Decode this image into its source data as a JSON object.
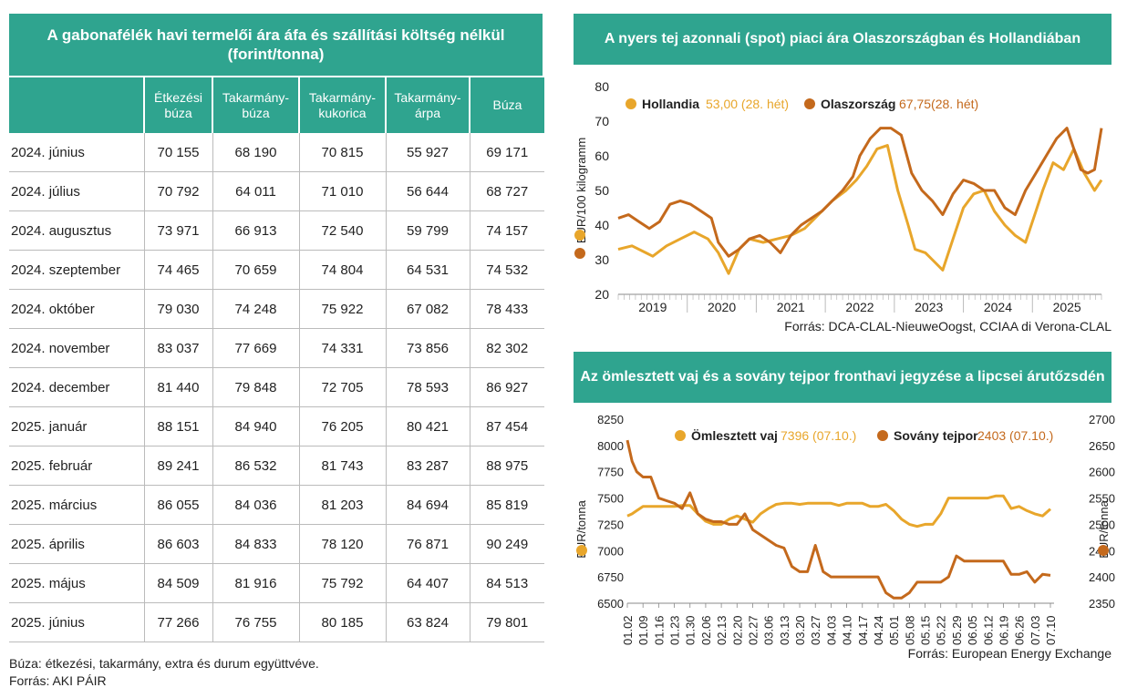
{
  "table": {
    "title": "A gabonafélék havi termelői ára áfa és szállítási költség nélkül (forint/tonna)",
    "headers": [
      "",
      "Étkezési búza",
      "Takarmány-búza",
      "Takarmány-kukorica",
      "Takarmány-árpa",
      "Búza"
    ],
    "rows": [
      [
        "2024. június",
        "70 155",
        "68 190",
        "70 815",
        "55 927",
        "69 171"
      ],
      [
        "2024. július",
        "70 792",
        "64 011",
        "71 010",
        "56 644",
        "68 727"
      ],
      [
        "2024. augusztus",
        "73 971",
        "66 913",
        "72 540",
        "59 799",
        "74 157"
      ],
      [
        "2024. szeptember",
        "74 465",
        "70 659",
        "74 804",
        "64 531",
        "74 532"
      ],
      [
        "2024. október",
        "79 030",
        "74 248",
        "75 922",
        "67 082",
        "78 433"
      ],
      [
        "2024. november",
        "83 037",
        "77 669",
        "74 331",
        "73 856",
        "82 302"
      ],
      [
        "2024. december",
        "81 440",
        "79 848",
        "72 705",
        "78 593",
        "86 927"
      ],
      [
        "2025. január",
        "88 151",
        "84 940",
        "76 205",
        "80 421",
        "87 454"
      ],
      [
        "2025. február",
        "89 241",
        "86 532",
        "81 743",
        "83 287",
        "88 975"
      ],
      [
        "2025. március",
        "86 055",
        "84 036",
        "81 203",
        "84 694",
        "85 819"
      ],
      [
        "2025. április",
        "86 603",
        "84 833",
        "78 120",
        "76 871",
        "90 249"
      ],
      [
        "2025. május",
        "84 509",
        "81 916",
        "75 792",
        "64 407",
        "84 513"
      ],
      [
        "2025. június",
        "77 266",
        "76 755",
        "80 185",
        "63 824",
        "79 801"
      ]
    ],
    "footnote1": "Búza: étkezési, takarmány, extra és durum együttvéve.",
    "footnote2": "Forrás: AKI PÁIR"
  },
  "chart_data": [
    {
      "type": "line",
      "title": "A nyers tej azonnali (spot) piaci ára Olaszországban és Hollandiában",
      "ylabel": "EUR/100 kilogramm",
      "ylim": [
        20,
        80
      ],
      "yticks": [
        "80",
        "70",
        "60",
        "50",
        "40",
        "30",
        "20"
      ],
      "xticks": [
        "2019",
        "2020",
        "2021",
        "2022",
        "2023",
        "2024",
        "2025"
      ],
      "xlim": [
        2018.5,
        2025.5
      ],
      "legend": "top-left",
      "source": "Forrás: DCA-CLAL-NieuweOogst, CCIAA di Verona-CLAL",
      "series": [
        {
          "name": "Hollandia",
          "annotation": "53,00 (28. hét)",
          "color": "#e8a62b",
          "x": [
            2018.5,
            2018.7,
            2018.9,
            2019.0,
            2019.2,
            2019.4,
            2019.6,
            2019.8,
            2019.95,
            2020.1,
            2020.25,
            2020.4,
            2020.6,
            2020.8,
            2021.0,
            2021.2,
            2021.4,
            2021.6,
            2021.8,
            2021.95,
            2022.1,
            2022.25,
            2022.4,
            2022.55,
            2022.7,
            2022.8,
            2022.95,
            2023.05,
            2023.2,
            2023.35,
            2023.5,
            2023.65,
            2023.8,
            2023.95,
            2024.1,
            2024.25,
            2024.4,
            2024.55,
            2024.65,
            2024.8,
            2024.95,
            2025.1,
            2025.25,
            2025.4,
            2025.5
          ],
          "y": [
            33,
            34,
            32,
            31,
            34,
            36,
            38,
            36,
            32,
            26,
            33,
            36,
            35,
            36,
            37,
            39,
            43,
            47,
            50,
            53,
            57,
            62,
            63,
            50,
            40,
            33,
            32,
            30,
            27,
            36,
            45,
            49,
            50,
            44,
            40,
            37,
            35,
            44,
            50,
            58,
            56,
            62,
            55,
            50,
            53
          ]
        },
        {
          "name": "Olaszország",
          "annotation": "67,75(28. hét)",
          "color": "#c4691c",
          "x": [
            2018.5,
            2018.65,
            2018.8,
            2018.95,
            2019.1,
            2019.25,
            2019.4,
            2019.55,
            2019.7,
            2019.85,
            2019.95,
            2020.1,
            2020.25,
            2020.4,
            2020.55,
            2020.7,
            2020.85,
            2021.0,
            2021.15,
            2021.3,
            2021.45,
            2021.6,
            2021.75,
            2021.9,
            2022.0,
            2022.15,
            2022.3,
            2022.45,
            2022.6,
            2022.75,
            2022.9,
            2023.05,
            2023.2,
            2023.35,
            2023.5,
            2023.65,
            2023.8,
            2023.95,
            2024.1,
            2024.25,
            2024.4,
            2024.55,
            2024.7,
            2024.85,
            2025.0,
            2025.1,
            2025.2,
            2025.3,
            2025.4,
            2025.5
          ],
          "y": [
            42,
            43,
            41,
            39,
            41,
            46,
            47,
            46,
            44,
            42,
            35,
            31,
            33,
            36,
            37,
            35,
            32,
            37,
            40,
            42,
            44,
            47,
            50,
            54,
            60,
            65,
            68,
            68,
            66,
            55,
            50,
            47,
            43,
            49,
            53,
            52,
            50,
            50,
            45,
            43,
            50,
            55,
            60,
            65,
            68,
            62,
            56,
            55,
            56,
            68
          ]
        }
      ]
    },
    {
      "type": "line",
      "title": "Az ömlesztett vaj és a sovány tejpor fronthavi jegyzése a lipcsei árutőzsdén",
      "ylabel": "EUR/tonna",
      "ylabel_right": "EUR/tonna",
      "ylim": [
        6500,
        8250
      ],
      "ylim_right": [
        2350,
        2700
      ],
      "yticks": [
        "8250",
        "8000",
        "7750",
        "7500",
        "7250",
        "7000",
        "6750",
        "6500"
      ],
      "yticks_right": [
        "2700",
        "2650",
        "2600",
        "2550",
        "2500",
        "2450",
        "2400",
        "2350"
      ],
      "xticks": [
        "01.02",
        "01.09",
        "01.16",
        "01.23",
        "01.30",
        "02.06",
        "02.13",
        "02.20",
        "02.27",
        "03.06",
        "03.13",
        "03.20",
        "03.27",
        "04.03",
        "04.10",
        "04.17",
        "04.24",
        "05.01",
        "05.08",
        "05.15",
        "05.22",
        "05.29",
        "06.05",
        "06.12",
        "06.19",
        "06.26",
        "07.03",
        "07.10"
      ],
      "legend": "top",
      "source": "Forrás: European Energy Exchange",
      "series": [
        {
          "name": "Ömlesztett vaj",
          "annotation": "7396 (07.10.)",
          "axis": "left",
          "color": "#e8a62b",
          "x": [
            0,
            0.3,
            0.6,
            1,
            1.5,
            2,
            2.5,
            3,
            3.5,
            4,
            4.5,
            5,
            5.5,
            6,
            6.5,
            7,
            7.5,
            8,
            8.5,
            9,
            9.5,
            10,
            10.5,
            11,
            11.5,
            12,
            12.5,
            13,
            13.5,
            14,
            14.5,
            15,
            15.5,
            16,
            16.5,
            17,
            17.5,
            18,
            18.5,
            19,
            19.5,
            20,
            20.5,
            21,
            21.5,
            22,
            22.5,
            23,
            23.5,
            24,
            24.5,
            25,
            25.5,
            26,
            26.5,
            27
          ],
          "y": [
            7330,
            7350,
            7380,
            7420,
            7420,
            7420,
            7420,
            7420,
            7430,
            7430,
            7350,
            7280,
            7250,
            7250,
            7300,
            7330,
            7300,
            7270,
            7350,
            7400,
            7440,
            7450,
            7450,
            7440,
            7450,
            7450,
            7450,
            7450,
            7430,
            7450,
            7450,
            7450,
            7420,
            7420,
            7440,
            7380,
            7300,
            7250,
            7230,
            7250,
            7250,
            7350,
            7500,
            7500,
            7500,
            7500,
            7500,
            7500,
            7520,
            7520,
            7400,
            7420,
            7380,
            7350,
            7330,
            7396
          ]
        },
        {
          "name": "Sovány tejpor",
          "annotation": "2403 (07.10.)",
          "axis": "right",
          "color": "#c4691c",
          "x": [
            0,
            0.3,
            0.6,
            1,
            1.5,
            2,
            2.5,
            3,
            3.5,
            4,
            4.5,
            5,
            5.5,
            6,
            6.5,
            7,
            7.5,
            8,
            8.5,
            9,
            9.5,
            10,
            10.5,
            11,
            11.5,
            12,
            12.5,
            13,
            13.5,
            14,
            14.5,
            15,
            15.5,
            16,
            16.5,
            17,
            17.5,
            18,
            18.5,
            19,
            19.5,
            20,
            20.5,
            21,
            21.5,
            22,
            22.5,
            23,
            23.5,
            24,
            24.5,
            25,
            25.5,
            26,
            26.5,
            27
          ],
          "y": [
            2660,
            2620,
            2600,
            2590,
            2590,
            2550,
            2545,
            2540,
            2530,
            2560,
            2520,
            2510,
            2505,
            2505,
            2500,
            2500,
            2520,
            2490,
            2480,
            2470,
            2460,
            2455,
            2420,
            2410,
            2410,
            2460,
            2410,
            2400,
            2400,
            2400,
            2400,
            2400,
            2400,
            2400,
            2370,
            2360,
            2360,
            2370,
            2390,
            2390,
            2390,
            2390,
            2400,
            2440,
            2430,
            2430,
            2430,
            2430,
            2430,
            2430,
            2405,
            2405,
            2410,
            2390,
            2405,
            2403
          ]
        }
      ]
    }
  ]
}
